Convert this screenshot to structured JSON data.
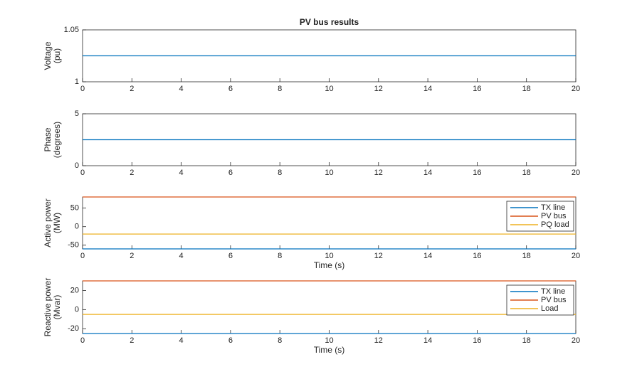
{
  "chart_data": [
    {
      "type": "line",
      "title": "PV bus results",
      "ylabel": [
        "Voltage",
        "(pu)"
      ],
      "x": [
        0,
        20
      ],
      "series": [
        {
          "color": "#0072bd",
          "values": [
            1.025,
            1.025
          ]
        }
      ],
      "xlim": [
        0,
        20
      ],
      "xticks": [
        0,
        2,
        4,
        6,
        8,
        10,
        12,
        14,
        16,
        18,
        20
      ],
      "ylim": [
        1,
        1.05
      ],
      "yticks": [
        1,
        1.05
      ],
      "grid": false
    },
    {
      "type": "line",
      "ylabel": [
        "Phase",
        "(degrees)"
      ],
      "x": [
        0,
        20
      ],
      "series": [
        {
          "color": "#0072bd",
          "values": [
            2.5,
            2.5
          ]
        }
      ],
      "xlim": [
        0,
        20
      ],
      "xticks": [
        0,
        2,
        4,
        6,
        8,
        10,
        12,
        14,
        16,
        18,
        20
      ],
      "ylim": [
        0,
        5
      ],
      "yticks": [
        0,
        5
      ],
      "grid": false
    },
    {
      "type": "line",
      "ylabel": [
        "Active power",
        "(MW)"
      ],
      "xlabel": "Time (s)",
      "x": [
        0,
        20
      ],
      "series": [
        {
          "name": "TX line",
          "color": "#0072bd",
          "values": [
            -60,
            -60
          ]
        },
        {
          "name": "PV bus",
          "color": "#d95319",
          "values": [
            80,
            80
          ]
        },
        {
          "name": "PQ load",
          "color": "#edb120",
          "values": [
            -20,
            -20
          ]
        }
      ],
      "xlim": [
        0,
        20
      ],
      "xticks": [
        0,
        2,
        4,
        6,
        8,
        10,
        12,
        14,
        16,
        18,
        20
      ],
      "ylim": [
        -60,
        80
      ],
      "yticks": [
        -50,
        0,
        50
      ],
      "grid": false,
      "legend": "upper right"
    },
    {
      "type": "line",
      "ylabel": [
        "Reactive power",
        "(Mvar)"
      ],
      "xlabel": "Time (s)",
      "x": [
        0,
        20
      ],
      "series": [
        {
          "name": "TX line",
          "color": "#0072bd",
          "values": [
            -25,
            -25
          ]
        },
        {
          "name": "PV bus",
          "color": "#d95319",
          "values": [
            30,
            30
          ]
        },
        {
          "name": "Load",
          "color": "#edb120",
          "values": [
            -5,
            -5
          ]
        }
      ],
      "xlim": [
        0,
        20
      ],
      "xticks": [
        0,
        2,
        4,
        6,
        8,
        10,
        12,
        14,
        16,
        18,
        20
      ],
      "ylim": [
        -25,
        30
      ],
      "yticks": [
        -20,
        0,
        20
      ],
      "grid": false,
      "legend": "upper right"
    }
  ]
}
